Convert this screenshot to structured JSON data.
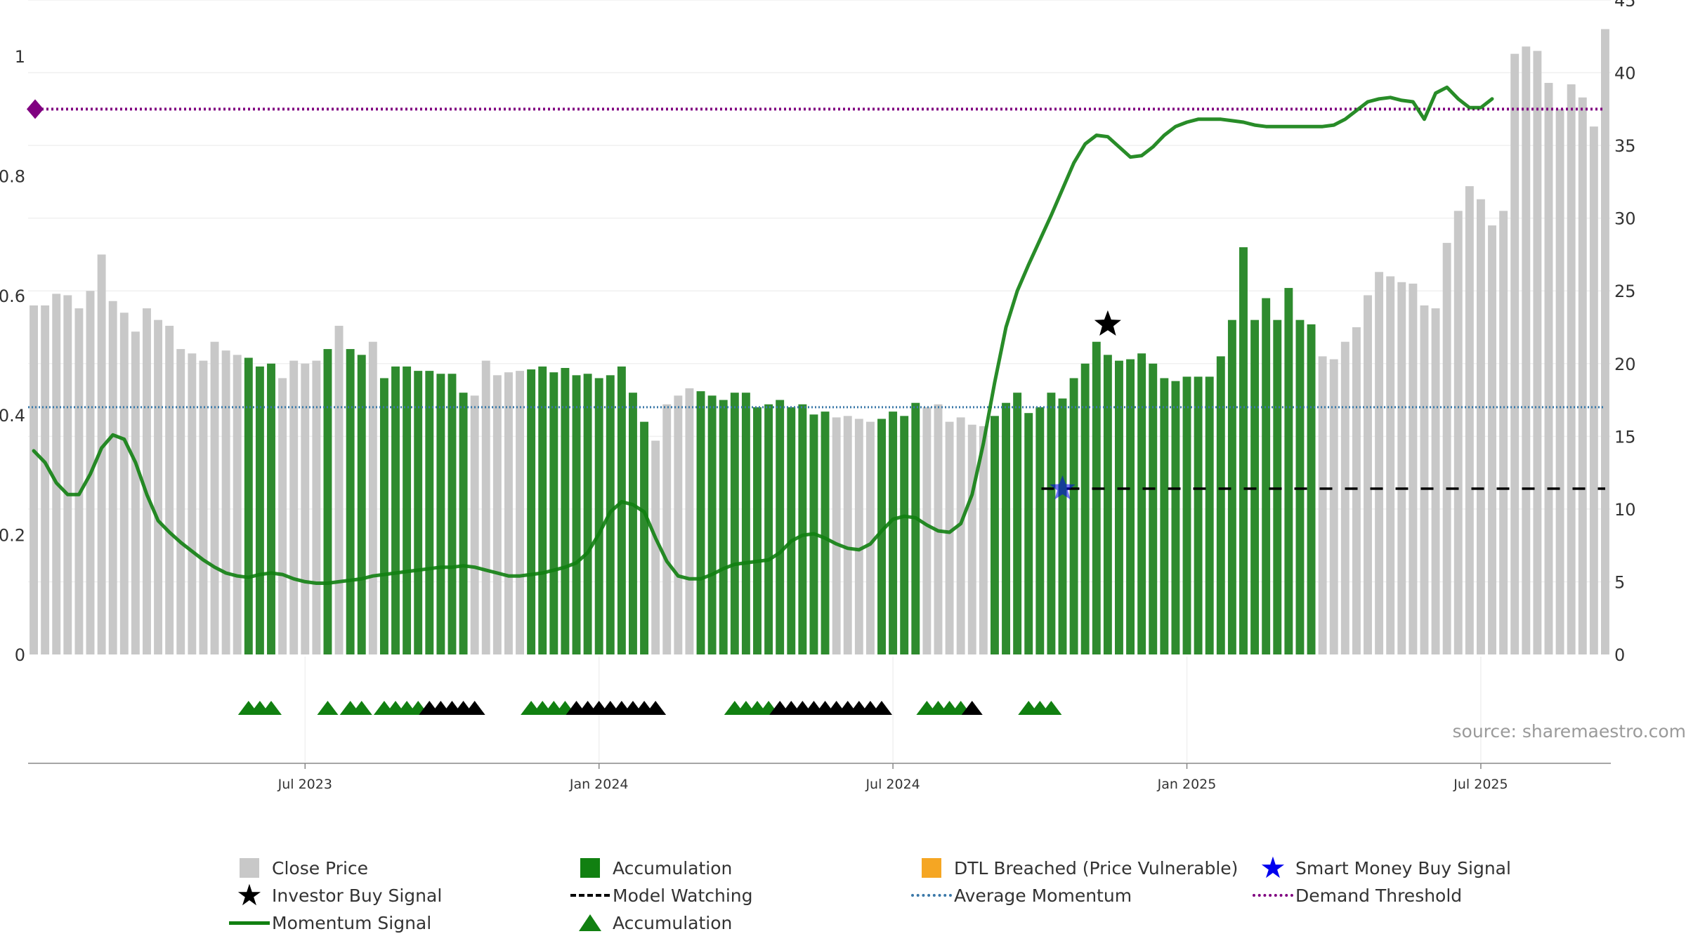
{
  "chart_data": {
    "type": "bar",
    "source_label": "source: sharemaestro.com",
    "x_tick_labels": [
      "Jul 2023",
      "Jan 2024",
      "Jul 2024",
      "Jan 2025",
      "Jul 2025"
    ],
    "y_left": {
      "ylim": [
        0,
        1
      ],
      "tick_labels": [
        "0",
        "0.2",
        "0.4",
        "0.6",
        "0.8",
        "1"
      ]
    },
    "y_right": {
      "ylim": [
        0,
        45
      ],
      "tick_labels": [
        "0",
        "5",
        "10",
        "15",
        "20",
        "25",
        "30",
        "35",
        "40",
        "45"
      ]
    },
    "colors": {
      "close_price": "#c8c8c8",
      "accumulation": "#2e8b2e",
      "dtl_breached": "#fdd28a",
      "momentum": "#118011",
      "average_momentum": "#3a78a8",
      "demand_threshold": "#800080",
      "model_watching": "#000000",
      "smart_money": "#0000ee",
      "triangle_accumulation": "#118011",
      "triangle_watching": "#000000"
    },
    "bar_states": "GGGGGGGGGGGGGGGGGGGAAAGGGGAGAAGAAAAAAAAGGGGGAAAAAAAAAAAGGGGAAAAAAAAAAAAGGGGAAAAGGGGGGAAAAAAAAAAAAAAAAAAAAAAAAAAAAAGGGGGGGGGGGGGGGGGGGGGGGGGGGGGGGGGGGGGGGGGGGGGGGGGGGGGGGGGGGGGGGGGGGGGGGGGGGGGOOOOOOOOO",
    "close_price": [
      24.0,
      24.0,
      24.8,
      24.7,
      23.8,
      25.0,
      27.5,
      24.3,
      23.5,
      22.2,
      23.8,
      23.0,
      22.6,
      21.0,
      20.7,
      20.2,
      21.5,
      20.9,
      20.6,
      20.4,
      19.8,
      20.0,
      19.0,
      20.2,
      20.0,
      20.2,
      21.0,
      22.6,
      21.0,
      20.6,
      21.5,
      19.0,
      19.8,
      19.8,
      19.5,
      19.5,
      19.3,
      19.3,
      18.0,
      17.8,
      20.2,
      19.2,
      19.4,
      19.5,
      19.6,
      19.8,
      19.4,
      19.7,
      19.2,
      19.3,
      19.0,
      19.2,
      19.8,
      18.0,
      16.0,
      14.7,
      17.2,
      17.8,
      18.3,
      18.1,
      17.8,
      17.5,
      18.0,
      18.0,
      17.0,
      17.2,
      17.5,
      17.0,
      17.2,
      16.5,
      16.7,
      16.3,
      16.4,
      16.2,
      16.0,
      16.2,
      16.7,
      16.4,
      17.3,
      17.0,
      17.2,
      16.0,
      16.3,
      15.8,
      15.7,
      16.4,
      17.3,
      18.0,
      16.6,
      17.0,
      18.0,
      17.6,
      19.0,
      20.0,
      21.5,
      20.6,
      20.2,
      20.3,
      20.7,
      20.0,
      19.0,
      18.8,
      19.1,
      19.1,
      19.1,
      20.5,
      23.0,
      28.0,
      23.0,
      24.5,
      23.0,
      25.2,
      23.0,
      22.7,
      20.5,
      20.3,
      21.5,
      22.5,
      24.7,
      26.3,
      26.0,
      25.6,
      25.5,
      24.0,
      23.8,
      28.3,
      30.5,
      32.2,
      31.3,
      29.5,
      30.5,
      41.3,
      41.8,
      41.5,
      39.3,
      37.5,
      39.2,
      38.3,
      36.3,
      43.0
    ],
    "momentum_signal": [
      14.0,
      13.2,
      11.8,
      11.0,
      11.0,
      12.4,
      14.2,
      15.1,
      14.8,
      13.2,
      11.0,
      9.2,
      8.4,
      7.7,
      7.1,
      6.5,
      6.0,
      5.6,
      5.4,
      5.3,
      5.5,
      5.6,
      5.5,
      5.2,
      5.0,
      4.9,
      4.9,
      5.0,
      5.1,
      5.2,
      5.4,
      5.5,
      5.6,
      5.7,
      5.8,
      5.9,
      6.0,
      6.0,
      6.1,
      6.0,
      5.8,
      5.6,
      5.4,
      5.4,
      5.5,
      5.6,
      5.8,
      6.0,
      6.3,
      7.0,
      8.3,
      9.8,
      10.5,
      10.3,
      9.8,
      8.0,
      6.4,
      5.4,
      5.2,
      5.2,
      5.5,
      5.9,
      6.2,
      6.3,
      6.4,
      6.5,
      7.0,
      7.8,
      8.2,
      8.3,
      8.0,
      7.6,
      7.3,
      7.2,
      7.6,
      8.5,
      9.3,
      9.5,
      9.4,
      8.9,
      8.5,
      8.4,
      9.0,
      11.0,
      14.5,
      18.7,
      22.5,
      25.0,
      26.8,
      28.5,
      30.2,
      32.0,
      33.8,
      35.1,
      35.7,
      35.6,
      34.9,
      34.2,
      34.3,
      34.9,
      35.7,
      36.3,
      36.6,
      36.8,
      36.8,
      36.8,
      36.7,
      36.6,
      36.4,
      36.3,
      36.3,
      36.3,
      36.3,
      36.3,
      36.3,
      36.4,
      36.8,
      37.4,
      38.0,
      38.2,
      38.3,
      38.1,
      38.0,
      36.8,
      38.6,
      39.0,
      38.2,
      37.6,
      37.6,
      38.2
    ],
    "average_momentum": 17.0,
    "demand_threshold": 37.5,
    "model_watching_level": 11.4,
    "investor_buy_signal": {
      "x_index": 95,
      "value": 22.7
    },
    "smart_money_buy_signal": {
      "x_index": 91,
      "value": 11.4
    },
    "triangles_accumulation": [
      19,
      20,
      21,
      26,
      28,
      29,
      31,
      32,
      33,
      34,
      44,
      45,
      46,
      47,
      62,
      63,
      64,
      65,
      79,
      80,
      81,
      82,
      88,
      89,
      90
    ],
    "triangles_watching": [
      35,
      36,
      37,
      38,
      39,
      48,
      49,
      50,
      51,
      52,
      53,
      54,
      55,
      66,
      67,
      68,
      69,
      70,
      71,
      72,
      73,
      74,
      75,
      83
    ]
  },
  "legend": {
    "close_price": "Close Price",
    "accumulation_bar": "Accumulation",
    "dtl_breached": "DTL Breached (Price Vulnerable)",
    "smart_money": "Smart Money Buy Signal",
    "investor_buy": "Investor Buy Signal",
    "model_watching": "Model Watching",
    "average_momentum": "Average Momentum",
    "demand_threshold": "Demand Threshold",
    "momentum_signal": "Momentum Signal",
    "accumulation_triangle": "Accumulation"
  }
}
